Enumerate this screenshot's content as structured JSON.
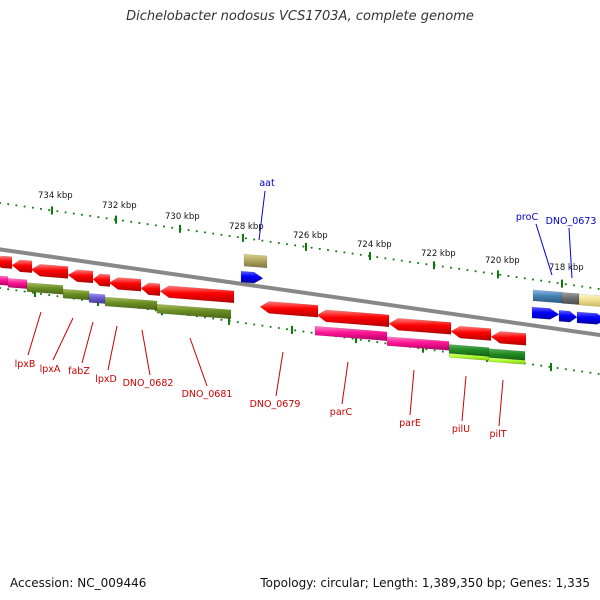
{
  "title": "Dichelobacter nodosus VCS1703A, complete genome",
  "footer": {
    "accession": "Accession: NC_009446",
    "summary": "Topology: circular; Length: 1,389,350 bp; Genes: 1,335"
  },
  "colors": {
    "backbone": "#888888",
    "tick": "#0a7a0a",
    "forward_label": "#0000cc",
    "reverse_label": "#cc0000"
  },
  "ruler_labels": [
    "734 kbp",
    "732 kbp",
    "730 kbp",
    "728 kbp",
    "726 kbp",
    "724 kbp",
    "722 kbp",
    "720 kbp",
    "718 kbp"
  ],
  "forward_labels": [
    "aat",
    "proC",
    "DNO_0673"
  ],
  "reverse_labels": [
    "lpxB",
    "lpxA",
    "fabZ",
    "lpxD",
    "DNO_0682",
    "DNO_0681",
    "DNO_0679",
    "parC",
    "parE",
    "pilU",
    "pilT"
  ]
}
